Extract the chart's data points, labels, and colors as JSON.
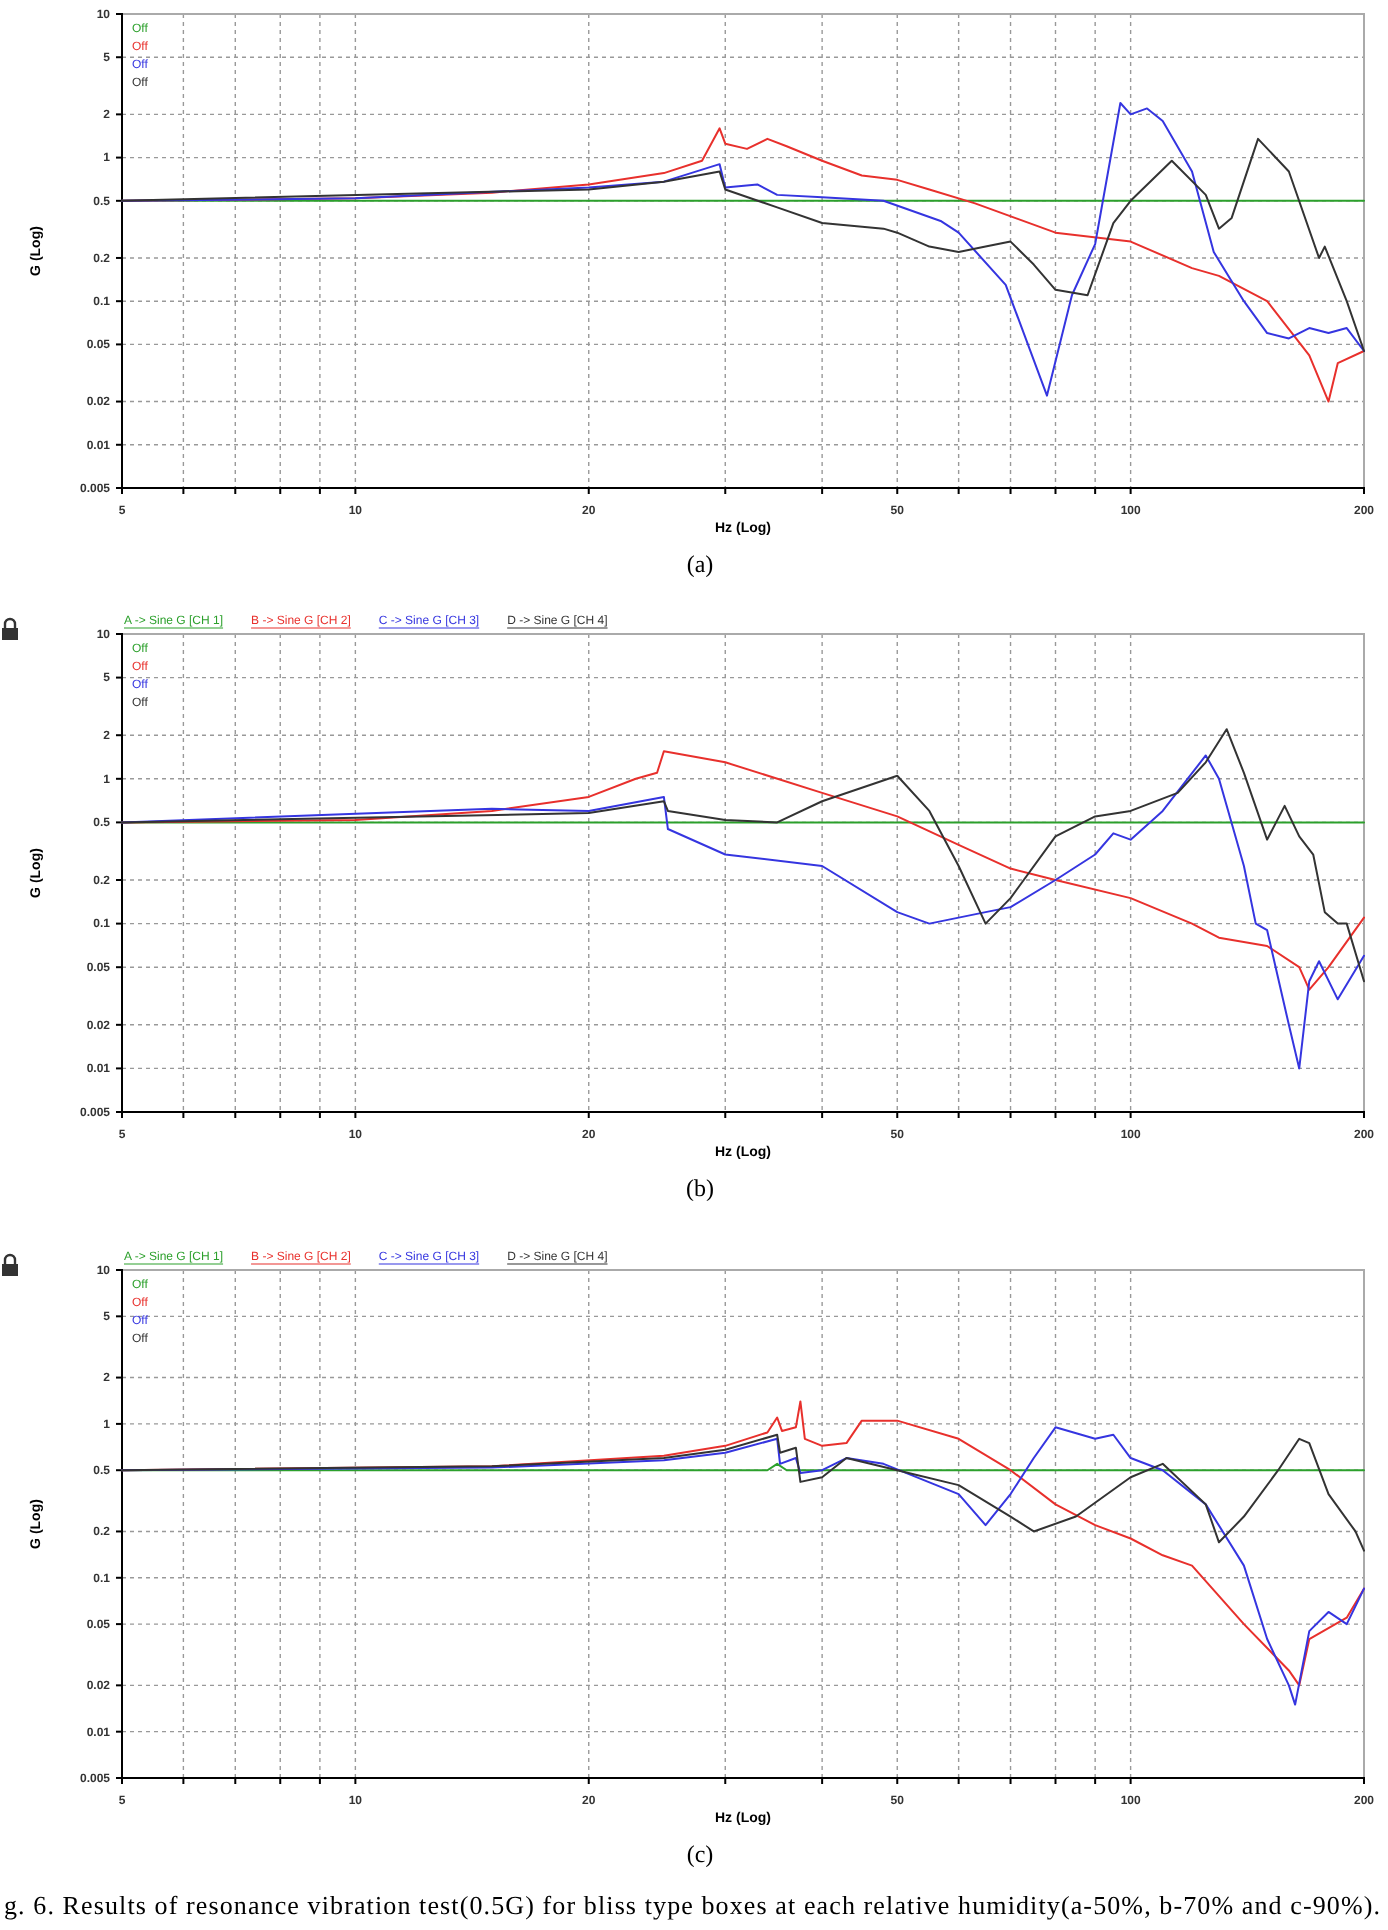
{
  "chart_data": [
    {
      "type": "line",
      "title": "(a)",
      "xlabel": "Hz (Log)",
      "ylabel": "G (Log)",
      "log": "xy",
      "grid": true,
      "legend": false,
      "xlim": [
        5,
        200
      ],
      "ylim": [
        0.005,
        10
      ],
      "xticks": [
        5,
        {
          "value": 6,
          "label": null
        },
        {
          "value": 7,
          "label": null
        },
        {
          "value": 8,
          "label": null
        },
        {
          "value": 9,
          "label": null
        },
        10,
        20,
        {
          "value": 30,
          "label": null
        },
        {
          "value": 40,
          "label": null
        },
        50,
        {
          "value": 60,
          "label": null
        },
        {
          "value": 70,
          "label": null
        },
        {
          "value": 80,
          "label": null
        },
        {
          "value": 90,
          "label": null
        },
        100,
        200
      ],
      "yticks": [
        0.005,
        0.01,
        0.02,
        0.05,
        0.1,
        0.2,
        0.5,
        1,
        2,
        5,
        10
      ],
      "annotations": [
        "Off",
        "Off",
        "Off",
        "Off"
      ],
      "series": [
        {
          "color": "#2ca02c",
          "x": [
            5,
            200
          ],
          "values": [
            0.5,
            0.5
          ]
        },
        {
          "color": "#e8302c",
          "x": [
            5,
            10,
            15,
            20,
            25,
            28,
            29.5,
            30,
            32,
            34,
            36,
            40,
            45,
            50,
            55,
            63,
            80,
            100,
            120,
            130,
            150,
            170,
            180,
            185,
            200
          ],
          "values": [
            0.5,
            0.52,
            0.57,
            0.65,
            0.78,
            0.95,
            1.6,
            1.25,
            1.15,
            1.35,
            1.2,
            0.95,
            0.75,
            0.7,
            0.6,
            0.48,
            0.3,
            0.26,
            0.17,
            0.15,
            0.1,
            0.042,
            0.02,
            0.037,
            0.045
          ]
        },
        {
          "color": "#3535e0",
          "x": [
            5,
            10,
            20,
            25,
            29.5,
            30,
            33,
            35,
            40,
            48,
            57,
            60,
            69,
            78,
            84,
            90,
            97,
            100,
            105,
            110,
            120,
            128,
            140,
            150,
            160,
            170,
            180,
            190,
            200
          ],
          "values": [
            0.5,
            0.52,
            0.62,
            0.68,
            0.9,
            0.62,
            0.65,
            0.55,
            0.53,
            0.5,
            0.36,
            0.3,
            0.13,
            0.022,
            0.11,
            0.25,
            2.4,
            2,
            2.2,
            1.8,
            0.8,
            0.22,
            0.1,
            0.06,
            0.055,
            0.065,
            0.06,
            0.065,
            0.045
          ]
        },
        {
          "color": "#333333",
          "x": [
            5,
            20,
            25,
            29.5,
            30,
            35,
            40,
            48,
            50,
            55,
            60,
            65,
            70,
            75,
            80,
            88,
            95,
            100,
            113,
            125,
            130,
            135,
            146,
            160,
            175,
            178,
            190,
            200
          ],
          "values": [
            0.5,
            0.6,
            0.68,
            0.8,
            0.6,
            0.45,
            0.35,
            0.32,
            0.3,
            0.24,
            0.22,
            0.24,
            0.26,
            0.18,
            0.12,
            0.11,
            0.35,
            0.5,
            0.95,
            0.55,
            0.32,
            0.38,
            1.35,
            0.8,
            0.2,
            0.24,
            0.1,
            0.045
          ]
        }
      ]
    },
    {
      "type": "line",
      "title": "(b)",
      "xlabel": "Hz (Log)",
      "ylabel": "G (Log)",
      "log": "xy",
      "grid": true,
      "legend": "top",
      "xlim": [
        5,
        200
      ],
      "ylim": [
        0.005,
        10
      ],
      "xticks": [
        5,
        {
          "value": 6,
          "label": null
        },
        {
          "value": 7,
          "label": null
        },
        {
          "value": 8,
          "label": null
        },
        {
          "value": 9,
          "label": null
        },
        10,
        20,
        {
          "value": 30,
          "label": null
        },
        {
          "value": 40,
          "label": null
        },
        50,
        {
          "value": 60,
          "label": null
        },
        {
          "value": 70,
          "label": null
        },
        {
          "value": 80,
          "label": null
        },
        {
          "value": 90,
          "label": null
        },
        100,
        200
      ],
      "yticks": [
        0.005,
        0.01,
        0.02,
        0.05,
        0.1,
        0.2,
        0.5,
        1,
        2,
        5,
        10
      ],
      "annotations": [
        "Off",
        "Off",
        "Off",
        "Off"
      ],
      "series": [
        {
          "name": "A -> Sine G [CH 1]",
          "color": "#2ca02c",
          "x": [
            5,
            200
          ],
          "values": [
            0.5,
            0.5
          ]
        },
        {
          "name": "B -> Sine G [CH 2]",
          "color": "#e8302c",
          "x": [
            5,
            10,
            15,
            20,
            23,
            24.5,
            25,
            30,
            40,
            50,
            60,
            70,
            80,
            100,
            120,
            130,
            150,
            165,
            170,
            180,
            200
          ],
          "values": [
            0.5,
            0.52,
            0.6,
            0.75,
            1,
            1.1,
            1.55,
            1.3,
            0.8,
            0.55,
            0.35,
            0.24,
            0.2,
            0.15,
            0.1,
            0.08,
            0.07,
            0.05,
            0.035,
            0.05,
            0.11
          ]
        },
        {
          "name": "C -> Sine G [CH 3]",
          "color": "#3535e0",
          "x": [
            5,
            15,
            20,
            25,
            25.3,
            30,
            40,
            50,
            55,
            60,
            65,
            70,
            80,
            90,
            95,
            100,
            110,
            125,
            130,
            140,
            145,
            150,
            160,
            165,
            170,
            175,
            185,
            200
          ],
          "values": [
            0.5,
            0.62,
            0.6,
            0.75,
            0.45,
            0.3,
            0.25,
            0.12,
            0.1,
            0.11,
            0.12,
            0.13,
            0.2,
            0.3,
            0.42,
            0.38,
            0.6,
            1.45,
            1,
            0.25,
            0.1,
            0.09,
            0.02,
            0.01,
            0.04,
            0.055,
            0.03,
            0.06
          ]
        },
        {
          "name": "D -> Sine G [CH 4]",
          "color": "#333333",
          "x": [
            5,
            20,
            25,
            25.3,
            30,
            35,
            40,
            50,
            55,
            60,
            65,
            70,
            80,
            90,
            100,
            115,
            125,
            133,
            140,
            150,
            158,
            165,
            172,
            178,
            185,
            190,
            200
          ],
          "values": [
            0.5,
            0.58,
            0.7,
            0.6,
            0.52,
            0.5,
            0.7,
            1.05,
            0.6,
            0.25,
            0.1,
            0.15,
            0.4,
            0.55,
            0.6,
            0.8,
            1.3,
            2.2,
            1.1,
            0.38,
            0.65,
            0.4,
            0.3,
            0.12,
            0.1,
            0.1,
            0.04
          ]
        }
      ]
    },
    {
      "type": "line",
      "title": "(c)",
      "xlabel": "Hz (Log)",
      "ylabel": "G (Log)",
      "log": "xy",
      "grid": true,
      "legend": "top",
      "xlim": [
        5,
        200
      ],
      "ylim": [
        0.005,
        10
      ],
      "xticks": [
        5,
        {
          "value": 6,
          "label": null
        },
        {
          "value": 7,
          "label": null
        },
        {
          "value": 8,
          "label": null
        },
        {
          "value": 9,
          "label": null
        },
        10,
        20,
        {
          "value": 30,
          "label": null
        },
        {
          "value": 40,
          "label": null
        },
        50,
        {
          "value": 60,
          "label": null
        },
        {
          "value": 70,
          "label": null
        },
        {
          "value": 80,
          "label": null
        },
        {
          "value": 90,
          "label": null
        },
        100,
        200
      ],
      "yticks": [
        0.005,
        0.01,
        0.02,
        0.05,
        0.1,
        0.2,
        0.5,
        1,
        2,
        5,
        10
      ],
      "annotations": [
        "Off",
        "Off",
        "Off",
        "Off",
        "g. 6. Results of resonance vibration test(0.5G) for bliss type boxes at each relative humidity(a-50%, b-70% and c-90%)."
      ],
      "series": [
        {
          "name": "A -> Sine G [CH 1]",
          "color": "#2ca02c",
          "x": [
            5,
            34,
            35,
            36,
            200
          ],
          "values": [
            0.5,
            0.5,
            0.55,
            0.5,
            0.5
          ]
        },
        {
          "name": "B -> Sine G [CH 2]",
          "color": "#e8302c",
          "x": [
            5,
            15,
            25,
            30,
            34,
            35,
            35.5,
            37,
            37.5,
            38,
            40,
            43,
            45,
            50,
            60,
            70,
            80,
            90,
            100,
            110,
            120,
            140,
            160,
            165,
            170,
            190,
            200
          ],
          "values": [
            0.5,
            0.53,
            0.62,
            0.72,
            0.88,
            1.1,
            0.9,
            0.95,
            1.4,
            0.8,
            0.72,
            0.75,
            1.05,
            1.05,
            0.8,
            0.5,
            0.3,
            0.22,
            0.18,
            0.14,
            0.12,
            0.05,
            0.025,
            0.02,
            0.04,
            0.055,
            0.085
          ]
        },
        {
          "name": "C -> Sine G [CH 3]",
          "color": "#3535e0",
          "x": [
            5,
            15,
            25,
            30,
            35,
            35.3,
            37,
            37.5,
            40,
            43,
            48,
            60,
            65,
            70,
            75,
            80,
            90,
            95,
            100,
            110,
            125,
            140,
            150,
            160,
            163,
            170,
            180,
            190,
            200
          ],
          "values": [
            0.5,
            0.52,
            0.58,
            0.65,
            0.8,
            0.55,
            0.6,
            0.48,
            0.5,
            0.6,
            0.55,
            0.35,
            0.22,
            0.35,
            0.6,
            0.95,
            0.8,
            0.85,
            0.6,
            0.5,
            0.3,
            0.12,
            0.04,
            0.02,
            0.015,
            0.045,
            0.06,
            0.05,
            0.085
          ]
        },
        {
          "name": "D -> Sine G [CH 4]",
          "color": "#333333",
          "x": [
            5,
            15,
            25,
            30,
            35,
            35.3,
            37,
            37.5,
            40,
            43,
            50,
            60,
            70,
            75,
            85,
            100,
            110,
            125,
            130,
            140,
            155,
            165,
            170,
            180,
            195,
            200
          ],
          "values": [
            0.5,
            0.53,
            0.6,
            0.68,
            0.85,
            0.65,
            0.7,
            0.42,
            0.45,
            0.6,
            0.5,
            0.4,
            0.25,
            0.2,
            0.25,
            0.45,
            0.55,
            0.3,
            0.17,
            0.25,
            0.5,
            0.8,
            0.75,
            0.35,
            0.2,
            0.15
          ]
        }
      ]
    }
  ]
}
